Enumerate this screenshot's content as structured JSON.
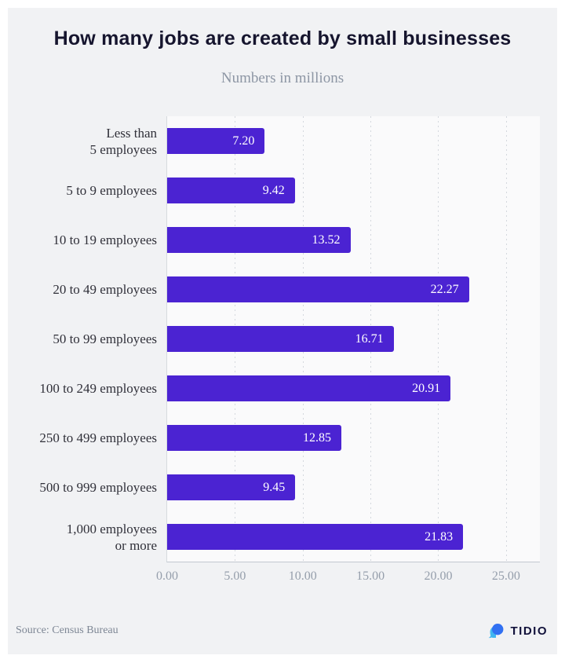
{
  "header": {
    "title": "How many jobs are created by small businesses",
    "subtitle": "Numbers in millions"
  },
  "chart_data": {
    "type": "bar",
    "orientation": "horizontal",
    "categories": [
      "Less than 5 employees",
      "5 to 9 employees",
      "10 to 19 employees",
      "20 to 49 employees",
      "50 to 99 employees",
      "100 to 249 employees",
      "250 to 499 employees",
      "500 to 999 employees",
      "1,000 employees or more"
    ],
    "label_lines": [
      [
        "Less than",
        "5 employees"
      ],
      [
        "5 to 9 employees"
      ],
      [
        "10 to 19 employees"
      ],
      [
        "20 to 49 employees"
      ],
      [
        "50 to 99 employees"
      ],
      [
        "100 to 249 employees"
      ],
      [
        "250 to 499 employees"
      ],
      [
        "500 to 999 employees"
      ],
      [
        "1,000 employees",
        "or more"
      ]
    ],
    "values": [
      7.2,
      9.42,
      13.52,
      22.27,
      16.71,
      20.91,
      12.85,
      9.45,
      21.83
    ],
    "value_labels": [
      "7.20",
      "9.42",
      "13.52",
      "22.27",
      "16.71",
      "20.91",
      "12.85",
      "9.45",
      "21.83"
    ],
    "title": "How many jobs are created by small businesses",
    "subtitle": "Numbers in millions",
    "xlabel": "",
    "ylabel": "",
    "x_ticks": [
      0,
      5,
      10,
      15,
      20,
      25
    ],
    "x_tick_labels": [
      "0.00",
      "5.00",
      "10.00",
      "15.00",
      "20.00",
      "25.00"
    ],
    "xlim": [
      0,
      27.5
    ],
    "grid": "vertical-dotted",
    "legend": "none",
    "bar_color": "#4b23d2",
    "value_label_color": "#ffffff"
  },
  "footer": {
    "source": "Source: Census Bureau",
    "brand": "TIDIO"
  },
  "colors": {
    "card_background": "#f1f2f4",
    "plot_background": "#fafafb",
    "bar": "#4b23d2",
    "title_text": "#16152e",
    "muted_text": "#8d96a4",
    "logo_front_bubble": "#3170f2",
    "logo_back_bubble": "#41b6f0"
  }
}
